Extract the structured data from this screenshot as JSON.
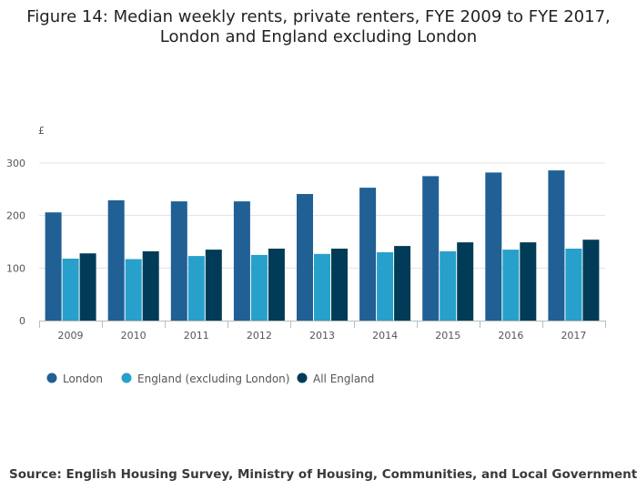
{
  "title_lines": [
    "Figure 14: Median weekly rents, private renters, FYE 2009 to FYE 2017,",
    "London and England excluding London"
  ],
  "source": "Source: English Housing Survey, Ministry of Housing, Communities, and Local Government",
  "chart_data": {
    "type": "bar",
    "title": "Figure 14: Median weekly rents, private renters, FYE 2009 to FYE 2017, London and England excluding London",
    "ylabel": "£",
    "xlabel": "",
    "ylim": [
      0,
      300
    ],
    "yticks": [
      0,
      100,
      200,
      300
    ],
    "grid": true,
    "legend_position": "bottom-left",
    "categories": [
      "2009",
      "2010",
      "2011",
      "2012",
      "2013",
      "2014",
      "2015",
      "2016",
      "2017"
    ],
    "series": [
      {
        "name": "London",
        "color": "#206095",
        "values": [
          206,
          229,
          227,
          227,
          241,
          253,
          275,
          282,
          286
        ]
      },
      {
        "name": "England (excluding London)",
        "color": "#27a0cc",
        "values": [
          118,
          117,
          123,
          125,
          127,
          130,
          132,
          135,
          137
        ]
      },
      {
        "name": "All England",
        "color": "#003c57",
        "values": [
          128,
          132,
          135,
          137,
          137,
          142,
          149,
          149,
          154
        ]
      }
    ]
  }
}
